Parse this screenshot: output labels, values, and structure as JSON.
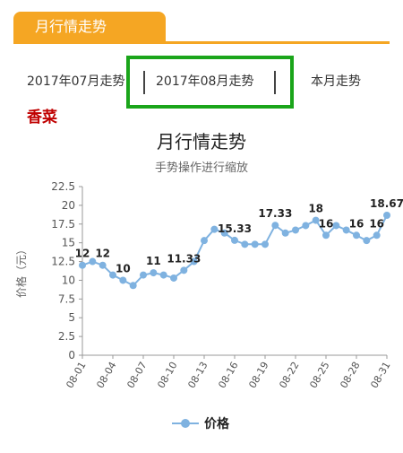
{
  "header": {
    "title": "月行情走势"
  },
  "tabs": {
    "prev": "2017年07月走势",
    "current": "2017年08月走势",
    "next": "本月走势"
  },
  "product": "香菜",
  "colors": {
    "accent": "#f5a623",
    "highlight": "#1aa51a",
    "series": "#7fb2e0",
    "product": "#c00000"
  },
  "chart_data": {
    "type": "line",
    "title": "月行情走势",
    "subtitle": "手势操作进行缩放",
    "ylabel": "价格（元）",
    "xlabel": "",
    "ylim": [
      0,
      22.5
    ],
    "yticks": [
      0,
      2.5,
      5,
      7.5,
      10,
      12.5,
      15,
      17.5,
      20,
      22.5
    ],
    "ytick_labels": [
      "0",
      "2.5",
      "5",
      "7.5",
      "10",
      "12.5",
      "15",
      "17.5",
      "20",
      "22.5"
    ],
    "x": [
      "08-01",
      "08-02",
      "08-03",
      "08-04",
      "08-05",
      "08-06",
      "08-07",
      "08-08",
      "08-09",
      "08-10",
      "08-11",
      "08-12",
      "08-13",
      "08-14",
      "08-15",
      "08-16",
      "08-17",
      "08-18",
      "08-19",
      "08-20",
      "08-21",
      "08-22",
      "08-23",
      "08-24",
      "08-25",
      "08-26",
      "08-27",
      "08-28",
      "08-29",
      "08-30",
      "08-31"
    ],
    "xtick_labels": [
      "08-01",
      "08-04",
      "08-07",
      "08-10",
      "08-13",
      "08-16",
      "08-19",
      "08-22",
      "08-25",
      "08-28",
      "08-31"
    ],
    "grid": false,
    "legend": "bottom",
    "series": [
      {
        "name": "价格",
        "values": [
          12,
          12.5,
          12,
          10.7,
          10,
          9.3,
          10.7,
          11,
          10.7,
          10.3,
          11.33,
          12.5,
          15.3,
          16.8,
          16.3,
          15.33,
          14.8,
          14.8,
          14.8,
          17.33,
          16.3,
          16.7,
          17.3,
          18,
          16,
          17.3,
          16.7,
          16,
          15.3,
          16,
          18.67
        ]
      }
    ],
    "data_labels": [
      {
        "x": "08-01",
        "text": "12"
      },
      {
        "x": "08-03",
        "text": "12"
      },
      {
        "x": "08-05",
        "text": "10"
      },
      {
        "x": "08-08",
        "text": "11"
      },
      {
        "x": "08-11",
        "text": "11.33"
      },
      {
        "x": "08-16",
        "text": "15.33"
      },
      {
        "x": "08-20",
        "text": "17.33"
      },
      {
        "x": "08-24",
        "text": "18"
      },
      {
        "x": "08-25",
        "text": "16"
      },
      {
        "x": "08-28",
        "text": "16"
      },
      {
        "x": "08-30",
        "text": "16"
      },
      {
        "x": "08-31",
        "text": "18.67"
      }
    ]
  }
}
